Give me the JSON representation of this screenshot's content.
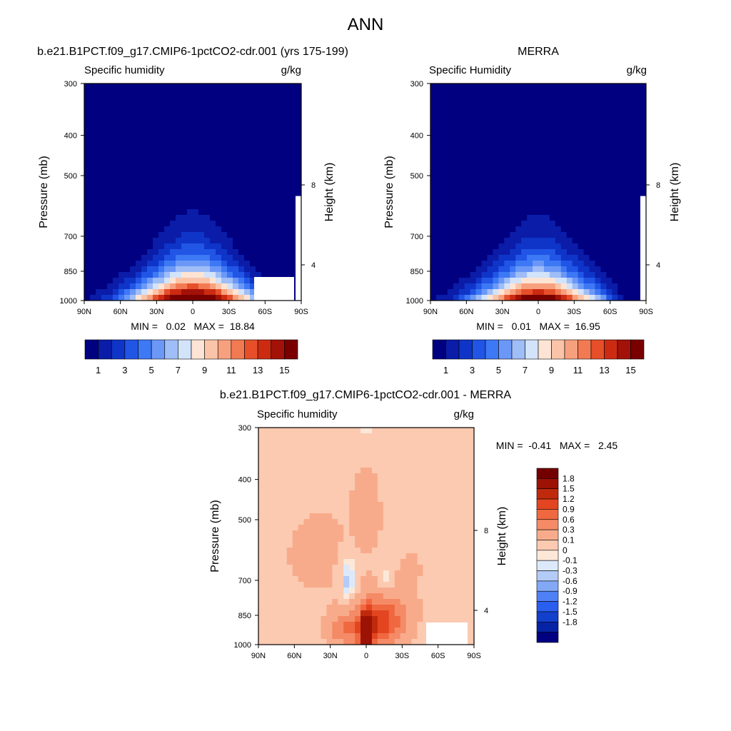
{
  "figure_title": "ANN",
  "colors": {
    "abs_scale": [
      "#000080",
      "#0a1ca8",
      "#0f35c8",
      "#2155e6",
      "#3d78f5",
      "#6b98f7",
      "#9fbdf7",
      "#d2e3fa",
      "#fde4d4",
      "#fbc4a8",
      "#f7a07e",
      "#f27a53",
      "#e64f2a",
      "#cc2b12",
      "#a31208",
      "#7a0000"
    ],
    "diff_scale": [
      "#000080",
      "#0622a5",
      "#1240cc",
      "#2a5ef0",
      "#4f80f5",
      "#82a8f6",
      "#b3cbf7",
      "#dce9fb",
      "#fde8d8",
      "#fbcab0",
      "#f8ab8b",
      "#f48b66",
      "#ef6840",
      "#e34520",
      "#c02a0c",
      "#9c1204",
      "#730000"
    ]
  },
  "chart_data": [
    {
      "type": "heatmap",
      "panel": "model",
      "title": "b.e21.B1PCT.f09_g17.CMIP6-1pctCO2-cdr.001 (yrs 175-199)",
      "left_label": "Specific humidity",
      "units": "g/kg",
      "xlabel": "",
      "ylabel": "Pressure (mb)",
      "right_axis_label": "Height (km)",
      "x_ticks": [
        "90N",
        "60N",
        "30N",
        "0",
        "30S",
        "60S",
        "90S"
      ],
      "y_ticks": [
        "300",
        "400",
        "500",
        "700",
        "850",
        "1000"
      ],
      "y_range": [
        300,
        1000
      ],
      "height_ticks": [
        "8",
        "4"
      ],
      "stats": "MIN =   0.02   MAX =  18.84",
      "min": 0.02,
      "max": 18.84,
      "levels": [
        0,
        1,
        2,
        3,
        4,
        5,
        6,
        7,
        8,
        9,
        10,
        11,
        12,
        13,
        14,
        15,
        16
      ],
      "colorbar_labels": [
        "1",
        "3",
        "5",
        "7",
        "9",
        "11",
        "13",
        "15"
      ]
    },
    {
      "type": "heatmap",
      "panel": "obs",
      "title": "MERRA",
      "left_label": "Specific Humidity",
      "units": "g/kg",
      "xlabel": "",
      "ylabel": "Pressure (mb)",
      "right_axis_label": "Height (km)",
      "x_ticks": [
        "90N",
        "60N",
        "30N",
        "0",
        "30S",
        "60S",
        "90S"
      ],
      "y_ticks": [
        "300",
        "400",
        "500",
        "700",
        "850",
        "1000"
      ],
      "y_range": [
        300,
        1000
      ],
      "height_ticks": [
        "8",
        "4"
      ],
      "stats": "MIN =   0.01   MAX =  16.95",
      "min": 0.01,
      "max": 16.95,
      "levels": [
        0,
        1,
        2,
        3,
        4,
        5,
        6,
        7,
        8,
        9,
        10,
        11,
        12,
        13,
        14,
        15,
        16
      ],
      "colorbar_labels": [
        "1",
        "3",
        "5",
        "7",
        "9",
        "11",
        "13",
        "15"
      ]
    },
    {
      "type": "heatmap",
      "panel": "difference",
      "title": "b.e21.B1PCT.f09_g17.CMIP6-1pctCO2-cdr.001 - MERRA",
      "left_label": "Specific humidity",
      "units": "g/kg",
      "xlabel": "",
      "ylabel": "Pressure (mb)",
      "right_axis_label": "Height (km)",
      "x_ticks": [
        "90N",
        "60N",
        "30N",
        "0",
        "30S",
        "60S",
        "90S"
      ],
      "y_ticks": [
        "300",
        "400",
        "500",
        "700",
        "850",
        "1000"
      ],
      "y_range": [
        300,
        1000
      ],
      "height_ticks": [
        "8",
        "4"
      ],
      "stats": "MIN =  -0.41   MAX =   2.45",
      "min": -0.41,
      "max": 2.45,
      "levels": [
        -1.8,
        -1.5,
        -1.2,
        -0.9,
        -0.6,
        -0.3,
        -0.1,
        0,
        0.1,
        0.3,
        0.6,
        0.9,
        1.2,
        1.5,
        1.8
      ],
      "colorbar_labels": [
        "1.8",
        "1.5",
        "1.2",
        "0.9",
        "0.6",
        "0.3",
        "0.1",
        "0",
        "-0.1",
        "-0.3",
        "-0.6",
        "-0.9",
        "-1.2",
        "-1.5",
        "-1.8"
      ]
    }
  ]
}
